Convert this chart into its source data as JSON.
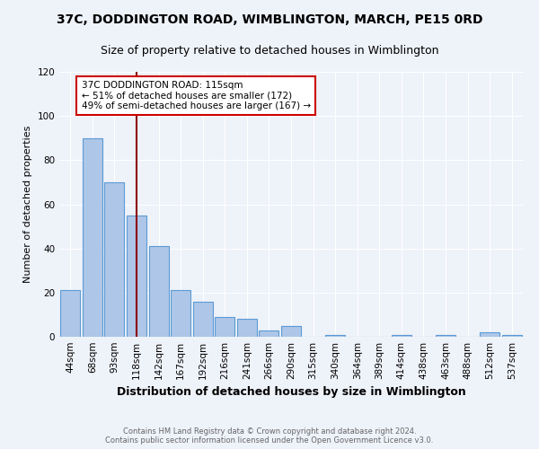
{
  "title": "37C, DODDINGTON ROAD, WIMBLINGTON, MARCH, PE15 0RD",
  "subtitle": "Size of property relative to detached houses in Wimblington",
  "xlabel": "Distribution of detached houses by size in Wimblington",
  "ylabel_actual": "Number of detached properties",
  "categories": [
    "44sqm",
    "68sqm",
    "93sqm",
    "118sqm",
    "142sqm",
    "167sqm",
    "192sqm",
    "216sqm",
    "241sqm",
    "266sqm",
    "290sqm",
    "315sqm",
    "340sqm",
    "364sqm",
    "389sqm",
    "414sqm",
    "438sqm",
    "463sqm",
    "488sqm",
    "512sqm",
    "537sqm"
  ],
  "values": [
    21,
    90,
    70,
    55,
    41,
    21,
    16,
    9,
    8,
    3,
    5,
    0,
    1,
    0,
    0,
    1,
    0,
    1,
    0,
    2,
    1
  ],
  "bar_color": "#aec6e8",
  "bar_edge_color": "#5b9bd5",
  "vline_color": "#8b0000",
  "vline_pos": 3.0,
  "annotation_text_line1": "37C DODDINGTON ROAD: 115sqm",
  "annotation_text_line2": "← 51% of detached houses are smaller (172)",
  "annotation_text_line3": "49% of semi-detached houses are larger (167) →",
  "annotation_box_color": "#ffffff",
  "annotation_box_edge_color": "#cc0000",
  "ylim": [
    0,
    120
  ],
  "yticks": [
    0,
    20,
    40,
    60,
    80,
    100,
    120
  ],
  "title_fontsize": 10,
  "subtitle_fontsize": 9,
  "xlabel_fontsize": 9,
  "ylabel_fontsize": 8,
  "tick_fontsize": 7.5,
  "annotation_fontsize": 7.5,
  "footer_line1": "Contains HM Land Registry data © Crown copyright and database right 2024.",
  "footer_line2": "Contains public sector information licensed under the Open Government Licence v3.0.",
  "background_color": "#eef2f9",
  "grid_color": "#ffffff"
}
